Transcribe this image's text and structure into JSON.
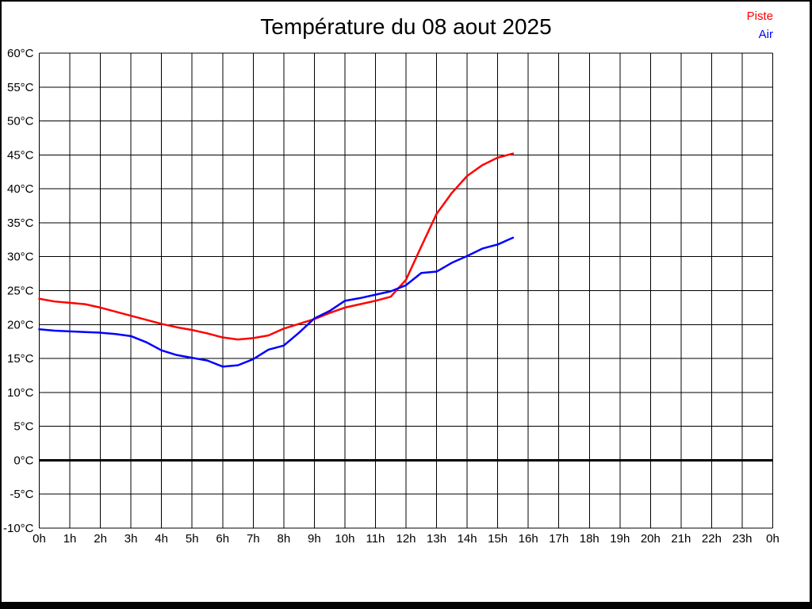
{
  "background": "#ffffff",
  "frame_color": "#000000",
  "chart_data": {
    "type": "line",
    "title": "Température du 08 aout 2025",
    "xlabel": "",
    "ylabel": "",
    "xlim": [
      0,
      24
    ],
    "ylim": [
      -10,
      60
    ],
    "grid": true,
    "grid_color": "#000000",
    "zero_line_width": 3,
    "legend_position": "top-right",
    "x_tick_labels": [
      "0h",
      "1h",
      "2h",
      "3h",
      "4h",
      "5h",
      "6h",
      "7h",
      "8h",
      "9h",
      "10h",
      "11h",
      "12h",
      "13h",
      "14h",
      "15h",
      "16h",
      "17h",
      "18h",
      "19h",
      "20h",
      "21h",
      "22h",
      "23h",
      "0h"
    ],
    "x_tick_values": [
      0,
      1,
      2,
      3,
      4,
      5,
      6,
      7,
      8,
      9,
      10,
      11,
      12,
      13,
      14,
      15,
      16,
      17,
      18,
      19,
      20,
      21,
      22,
      23,
      24
    ],
    "y_tick_labels": [
      "60°C",
      "55°C",
      "50°C",
      "45°C",
      "40°C",
      "35°C",
      "30°C",
      "25°C",
      "20°C",
      "15°C",
      "10°C",
      "5°C",
      "0°C",
      "-5°C",
      "-10°C"
    ],
    "y_tick_values": [
      60,
      55,
      50,
      45,
      40,
      35,
      30,
      25,
      20,
      15,
      10,
      5,
      0,
      -5,
      -10
    ],
    "x_unit": "hours",
    "y_unit": "°C",
    "x": [
      0,
      0.5,
      1,
      1.5,
      2,
      2.5,
      3,
      3.5,
      4,
      4.5,
      5,
      5.5,
      6,
      6.5,
      7,
      7.5,
      8,
      8.5,
      9,
      9.5,
      10,
      10.5,
      11,
      11.5,
      12,
      12.5,
      13,
      13.5,
      14,
      14.5,
      15,
      15.5
    ],
    "series": [
      {
        "name": "Piste",
        "color": "#ff0000",
        "values": [
          23.8,
          23.4,
          23.2,
          23.0,
          22.5,
          21.9,
          21.3,
          20.7,
          20.1,
          19.6,
          19.2,
          18.7,
          18.1,
          17.8,
          18.0,
          18.4,
          19.4,
          20.1,
          20.8,
          21.7,
          22.5,
          23.0,
          23.5,
          24.1,
          26.6,
          31.5,
          36.3,
          39.4,
          41.9,
          43.5,
          44.6,
          45.2
        ]
      },
      {
        "name": "Air",
        "color": "#0000ff",
        "values": [
          19.3,
          19.1,
          19.0,
          18.9,
          18.8,
          18.6,
          18.3,
          17.4,
          16.2,
          15.5,
          15.1,
          14.7,
          13.8,
          14.0,
          14.9,
          16.3,
          16.9,
          18.8,
          20.9,
          22.0,
          23.5,
          23.9,
          24.4,
          24.9,
          25.8,
          27.6,
          27.8,
          29.1,
          30.1,
          31.2,
          31.8,
          32.8
        ]
      }
    ]
  }
}
